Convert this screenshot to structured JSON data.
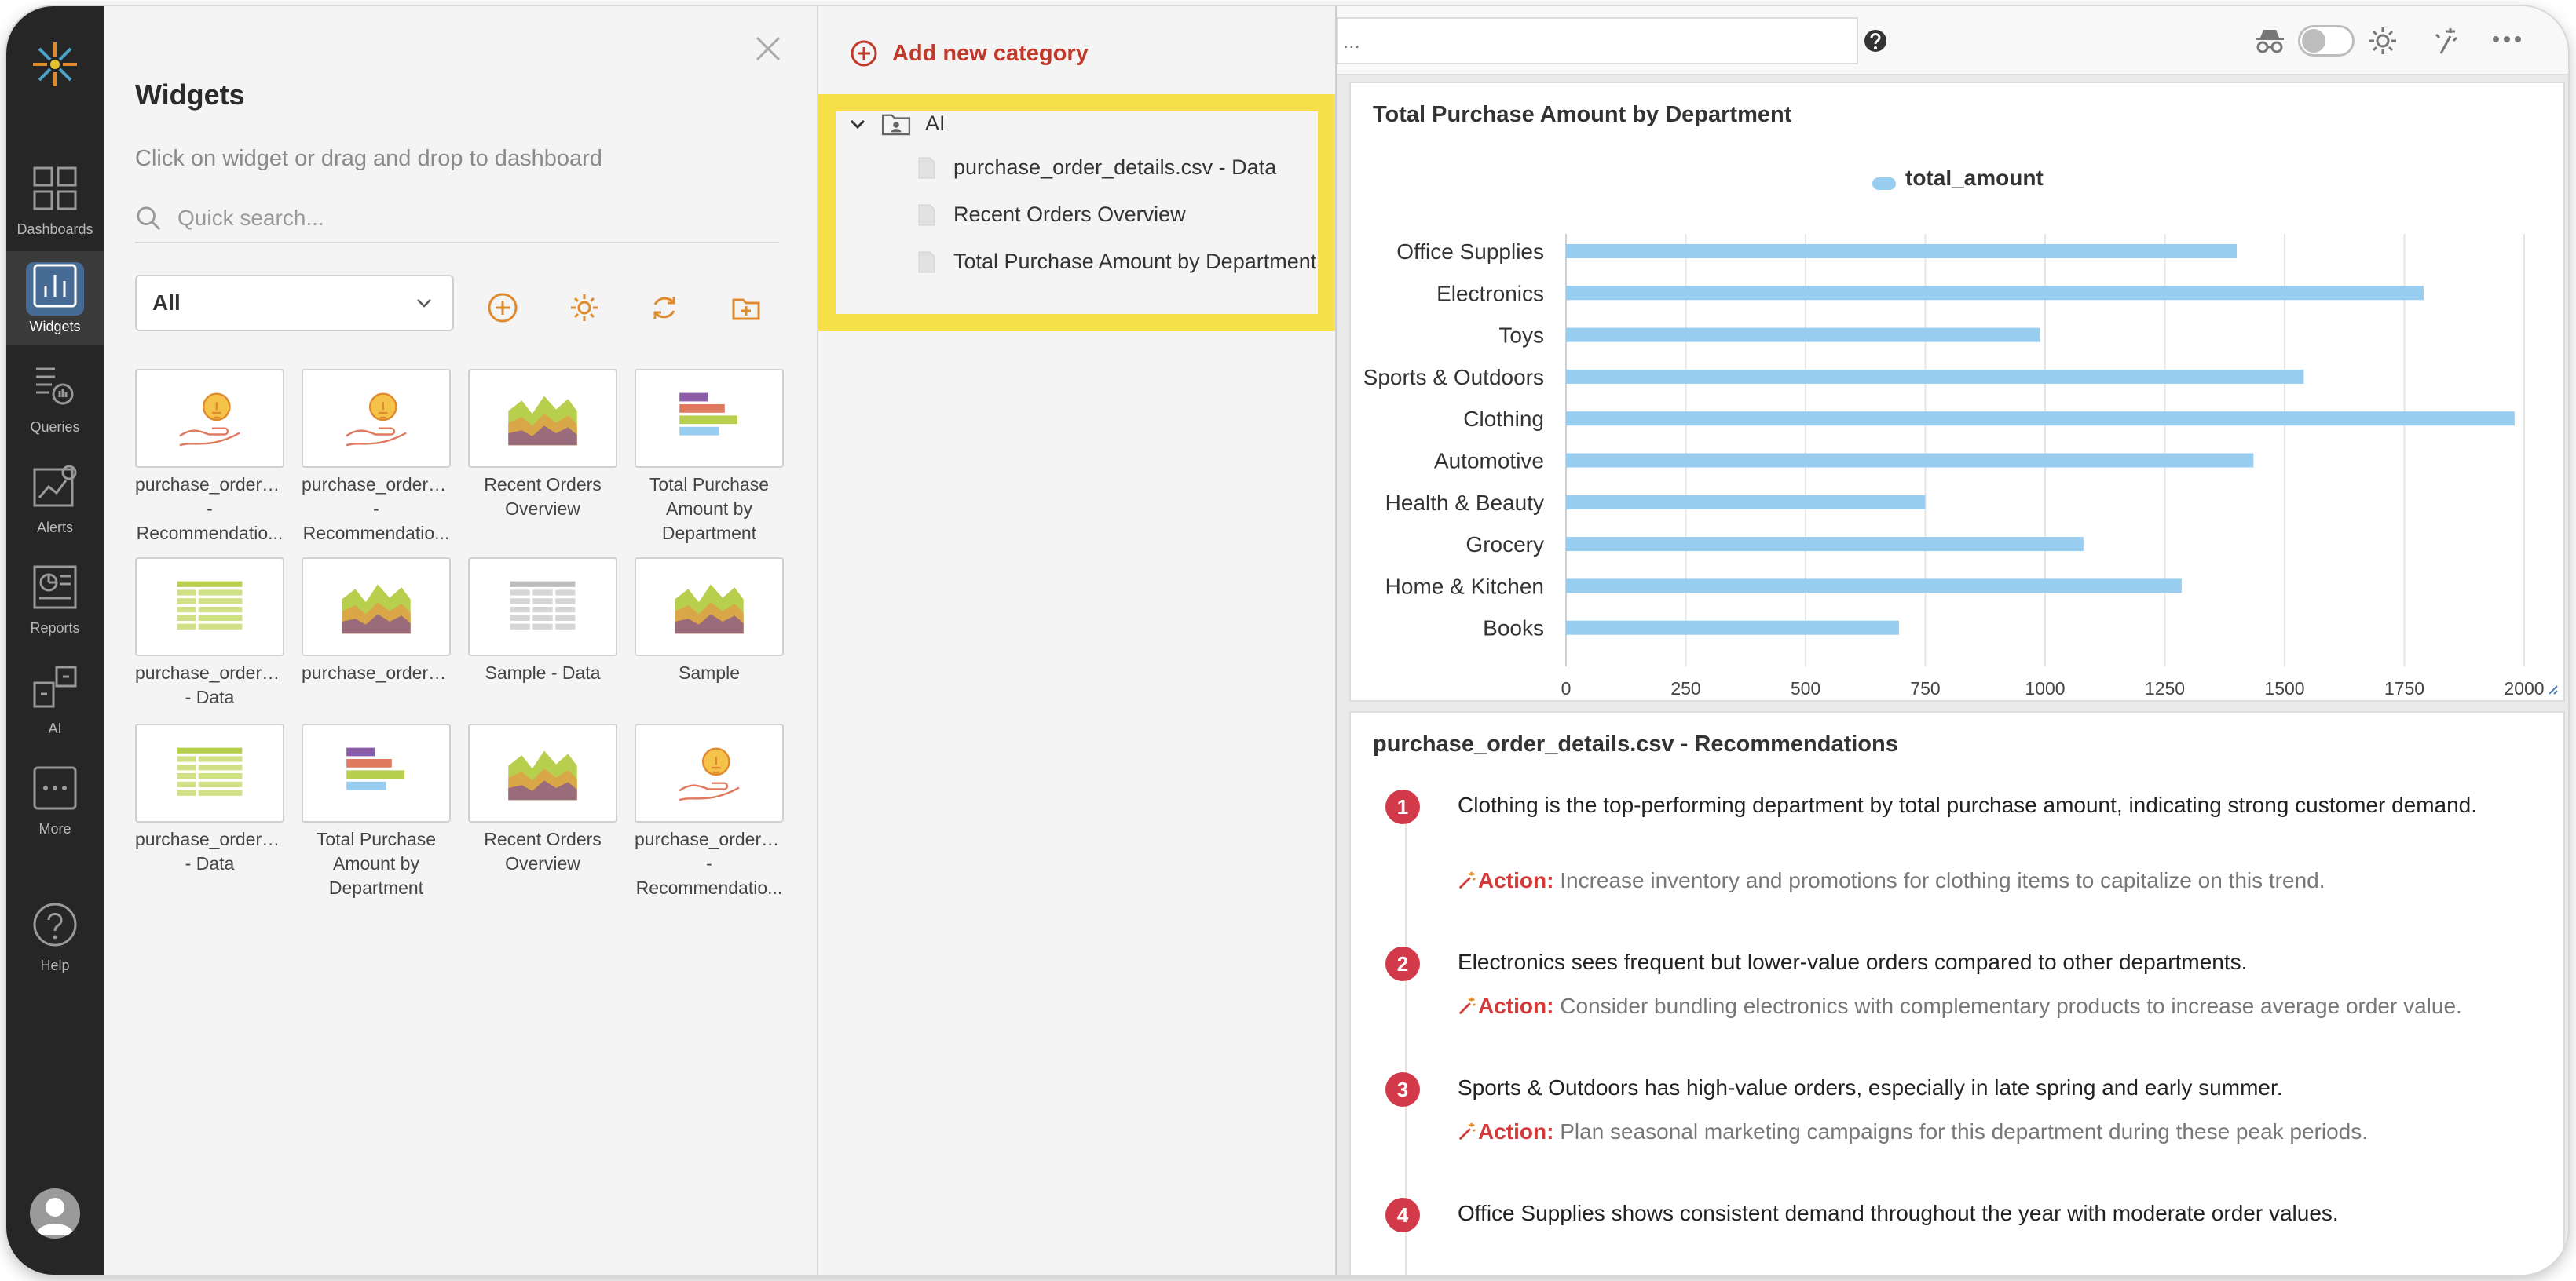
{
  "nav": {
    "items": [
      {
        "label": "Dashboards",
        "icon": "grid-icon"
      },
      {
        "label": "Widgets",
        "icon": "bar-chart-icon"
      },
      {
        "label": "Queries",
        "icon": "queries-icon"
      },
      {
        "label": "Alerts",
        "icon": "alerts-icon"
      },
      {
        "label": "Reports",
        "icon": "reports-icon"
      },
      {
        "label": "AI",
        "icon": "ai-icon"
      },
      {
        "label": "More",
        "icon": "more-icon"
      },
      {
        "label": "Help",
        "icon": "help-icon"
      }
    ]
  },
  "widgets_panel": {
    "title": "Widgets",
    "subtitle": "Click on widget or drag and drop to dashboard",
    "search_placeholder": "Quick search...",
    "filter_value": "All",
    "tiles": [
      {
        "line1": "purchase_order_...",
        "line2": "-",
        "line3": "Recommendatio...",
        "icon": "recommendation-icon"
      },
      {
        "line1": "purchase_order_...",
        "line2": "-",
        "line3": "Recommendatio...",
        "icon": "recommendation-icon"
      },
      {
        "line1": "Recent Orders",
        "line2": "Overview",
        "line3": "",
        "icon": "area-chart-icon"
      },
      {
        "line1": "Total Purchase",
        "line2": "Amount by",
        "line3": "Department",
        "icon": "bar-chart-icon"
      },
      {
        "line1": "purchase_order_...",
        "line2": "- Data",
        "line3": "",
        "icon": "table-green-icon"
      },
      {
        "line1": "purchase_order_...",
        "line2": "",
        "line3": "",
        "icon": "area-chart-icon"
      },
      {
        "line1": "Sample - Data",
        "line2": "",
        "line3": "",
        "icon": "table-gray-icon"
      },
      {
        "line1": "Sample",
        "line2": "",
        "line3": "",
        "icon": "area-chart-icon"
      },
      {
        "line1": "purchase_order_...",
        "line2": "- Data",
        "line3": "",
        "icon": "table-green-icon"
      },
      {
        "line1": "Total Purchase",
        "line2": "Amount by",
        "line3": "Department",
        "icon": "bar-chart-icon"
      },
      {
        "line1": "Recent Orders",
        "line2": "Overview",
        "line3": "",
        "icon": "area-chart-icon"
      },
      {
        "line1": "purchase_order_...",
        "line2": "-",
        "line3": "Recommendatio...",
        "icon": "recommendation-icon"
      }
    ]
  },
  "tree": {
    "add_label": "Add new category",
    "folder": "AI",
    "items": [
      "purchase_order_details.csv - Data",
      "Recent Orders Overview",
      "Total Purchase Amount by Department"
    ]
  },
  "dashboard": {
    "search_value": "..."
  },
  "chart_data": {
    "type": "bar",
    "orientation": "horizontal",
    "title": "Total Purchase Amount by Department",
    "categories": [
      "Office Supplies",
      "Electronics",
      "Toys",
      "Sports & Outdoors",
      "Clothing",
      "Automotive",
      "Health & Beauty",
      "Grocery",
      "Home & Kitchen",
      "Books"
    ],
    "series": [
      {
        "name": "total_amount",
        "values": [
          1400,
          1790,
          990,
          1540,
          1980,
          1435,
          750,
          1080,
          1285,
          695
        ],
        "color": "#98cdef"
      }
    ],
    "xlim": [
      0,
      2000
    ],
    "xticks": [
      0,
      250,
      500,
      750,
      1000,
      1250,
      1500,
      1750,
      2000
    ],
    "grid": true,
    "legend": "top"
  },
  "recommendations": {
    "title": "purchase_order_details.csv - Recommendations",
    "action_label": "Action:",
    "items": [
      {
        "num": "1",
        "text": "Clothing is the top-performing department by total purchase amount, indicating strong customer demand.",
        "action": "Increase inventory and promotions for clothing items to capitalize on this trend."
      },
      {
        "num": "2",
        "text": "Electronics sees frequent but lower-value orders compared to other departments.",
        "action": "Consider bundling electronics with complementary products to increase average order value."
      },
      {
        "num": "3",
        "text": "Sports & Outdoors has high-value orders, especially in late spring and early summer.",
        "action": "Plan seasonal marketing campaigns for this department during these peak periods."
      },
      {
        "num": "4",
        "text": "Office Supplies shows consistent demand throughout the year with moderate order values.",
        "action": ""
      }
    ]
  }
}
